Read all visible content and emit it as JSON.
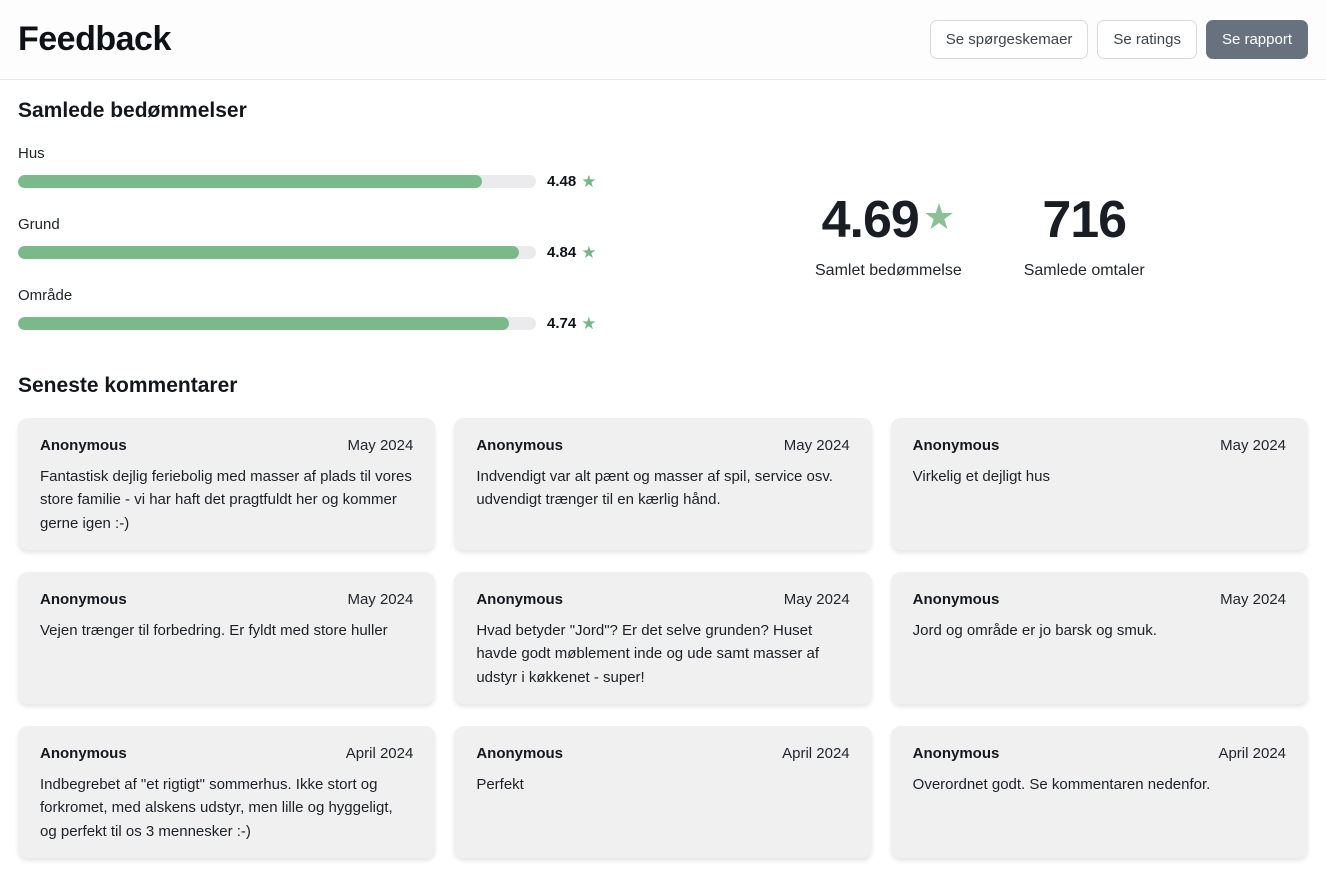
{
  "header": {
    "title": "Feedback",
    "buttons": [
      {
        "label": "Se spørgeskemaer",
        "variant": "outline",
        "name": "see-questionnaires-button"
      },
      {
        "label": "Se ratings",
        "variant": "outline",
        "name": "see-ratings-button"
      },
      {
        "label": "Se rapport",
        "variant": "solid",
        "name": "see-report-button"
      }
    ]
  },
  "ratings_section": {
    "title": "Samlede bedømmelser",
    "max_rating": 5,
    "bars": [
      {
        "label": "Hus",
        "value": "4.48",
        "percent": 89.6
      },
      {
        "label": "Grund",
        "value": "4.84",
        "percent": 96.8
      },
      {
        "label": "Område",
        "value": "4.74",
        "percent": 94.8
      }
    ],
    "summary": [
      {
        "value": "4.69",
        "has_star": true,
        "label": "Samlet bedømmelse"
      },
      {
        "value": "716",
        "has_star": false,
        "label": "Samlede omtaler"
      }
    ]
  },
  "comments_section": {
    "title": "Seneste kommentarer",
    "comments": [
      {
        "author": "Anonymous",
        "date": "May 2024",
        "text": "Fantastisk dejlig feriebolig med masser af plads til vores store familie - vi har haft det pragtfuldt her og kommer gerne igen :-)"
      },
      {
        "author": "Anonymous",
        "date": "May 2024",
        "text": "Indvendigt var alt pænt og masser af spil, service osv. udvendigt trænger til en kærlig hånd."
      },
      {
        "author": "Anonymous",
        "date": "May 2024",
        "text": "Virkelig et dejligt hus"
      },
      {
        "author": "Anonymous",
        "date": "May 2024",
        "text": "Vejen trænger til forbedring. Er fyldt med store huller"
      },
      {
        "author": "Anonymous",
        "date": "May 2024",
        "text": "Hvad betyder \"Jord\"? Er det selve grunden? Huset havde godt møblement inde og ude samt masser af udstyr i køkkenet - super!"
      },
      {
        "author": "Anonymous",
        "date": "May 2024",
        "text": "Jord og område er jo barsk og smuk."
      },
      {
        "author": "Anonymous",
        "date": "April 2024",
        "text": "Indbegrebet af \"et rigtigt\" sommerhus. Ikke stort og forkromet, med alskens udstyr, men lille og hyggeligt, og perfekt til os 3 mennesker :-)"
      },
      {
        "author": "Anonymous",
        "date": "April 2024",
        "text": "Perfekt"
      },
      {
        "author": "Anonymous",
        "date": "April 2024",
        "text": "Overordnet godt. Se kommentaren nedenfor."
      }
    ]
  },
  "icons": {
    "star": "★",
    "star_name": "star-icon"
  },
  "colors": {
    "bar_fill": "#7cb98a",
    "bar_track": "#ebebee",
    "star_small": "#79b687",
    "star_large": "#8cc096",
    "card_bg": "#f0f0f1",
    "solid_button_bg": "#68727f",
    "text_dark": "#16191e"
  }
}
